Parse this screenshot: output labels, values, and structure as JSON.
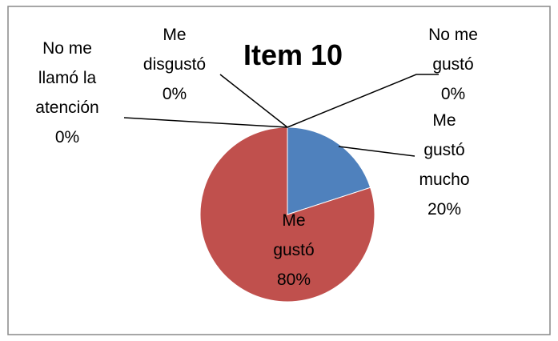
{
  "chart_data": {
    "type": "pie",
    "title": "Item 10",
    "categories": [
      "Me gustó mucho",
      "Me gustó",
      "No me llamó la atención",
      "Me disgustó",
      "No me gustó"
    ],
    "values": [
      20,
      80,
      0,
      0,
      0
    ],
    "value_labels": [
      "20%",
      "80%",
      "0%",
      "0%",
      "0%"
    ],
    "colors": [
      "#4f81bd",
      "#c0504d",
      "#9bbb59",
      "#8064a2",
      "#4bacc6"
    ]
  }
}
